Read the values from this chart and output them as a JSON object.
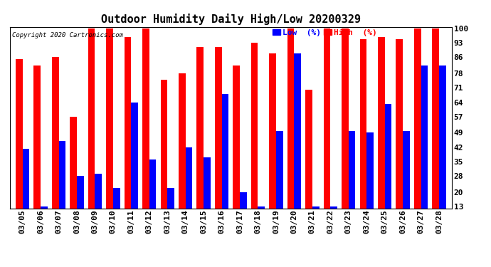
{
  "dates": [
    "03/05",
    "03/06",
    "03/07",
    "03/08",
    "03/09",
    "03/10",
    "03/11",
    "03/12",
    "03/13",
    "03/14",
    "03/15",
    "03/16",
    "03/17",
    "03/18",
    "03/19",
    "03/20",
    "03/21",
    "03/22",
    "03/23",
    "03/24",
    "03/25",
    "03/26",
    "03/27",
    "03/28"
  ],
  "high": [
    85,
    82,
    86,
    57,
    100,
    100,
    96,
    100,
    75,
    78,
    91,
    91,
    82,
    93,
    88,
    100,
    70,
    100,
    100,
    95,
    96,
    95,
    100,
    100
  ],
  "low": [
    41,
    13,
    45,
    28,
    29,
    22,
    64,
    36,
    22,
    42,
    37,
    68,
    20,
    13,
    50,
    88,
    13,
    13,
    50,
    49,
    63,
    50,
    82,
    82
  ],
  "title": "Outdoor Humidity Daily High/Low 20200329",
  "yticks": [
    100,
    93,
    86,
    78,
    71,
    64,
    57,
    49,
    42,
    35,
    28,
    20,
    13
  ],
  "ymin": 13,
  "ymax": 100,
  "high_color": "#ff0000",
  "low_color": "#0000ff",
  "bg_color": "#ffffff",
  "grid_color": "#bbbbbb",
  "copyright_text": "Copyright 2020 Cartronics.com",
  "legend_low": "Low  (%)",
  "legend_high": "High  (%)",
  "title_fontsize": 11,
  "tick_fontsize": 8,
  "bar_width": 0.38
}
